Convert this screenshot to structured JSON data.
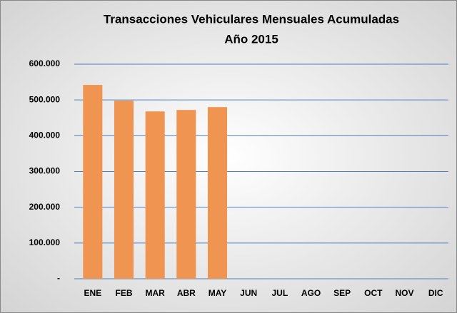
{
  "chart_data": {
    "type": "bar",
    "title": "Transacciones Vehiculares Mensuales  Acumuladas",
    "subtitle": "Año 2015",
    "categories": [
      "ENE",
      "FEB",
      "MAR",
      "ABR",
      "MAY",
      "JUN",
      "JUL",
      "AGO",
      "SEP",
      "OCT",
      "NOV",
      "DIC"
    ],
    "values": [
      542000,
      498000,
      468000,
      472000,
      480000,
      null,
      null,
      null,
      null,
      null,
      null,
      null
    ],
    "color": "#f09452",
    "ylim": [
      0,
      600000
    ],
    "yticks": [
      {
        "value": 0,
        "label": "-"
      },
      {
        "value": 100000,
        "label": "100.000"
      },
      {
        "value": 200000,
        "label": "200.000"
      },
      {
        "value": 300000,
        "label": "300.000"
      },
      {
        "value": 400000,
        "label": "400.000"
      },
      {
        "value": 500000,
        "label": "500.000"
      },
      {
        "value": 600000,
        "label": "600.000"
      }
    ],
    "grid": true
  }
}
